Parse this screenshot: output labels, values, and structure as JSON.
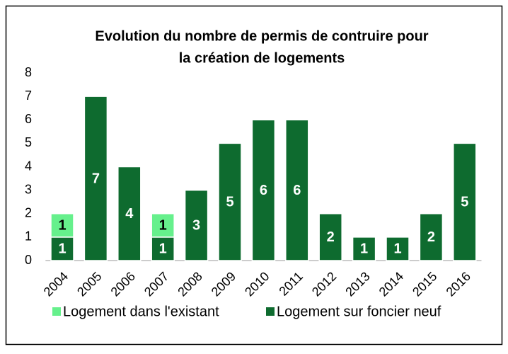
{
  "chart_data": {
    "type": "stacked_bar",
    "title": [
      "Evolution du nombre de permis de contruire pour",
      "la création de logements"
    ],
    "categories": [
      "2004",
      "2005",
      "2006",
      "2007",
      "2008",
      "2009",
      "2010",
      "2011",
      "2012",
      "2013",
      "2014",
      "2015",
      "2016"
    ],
    "series": [
      {
        "name": "Logement dans l'existant",
        "color": "#66f08c",
        "label_color": "#000000",
        "values": [
          1,
          0,
          0,
          1,
          0,
          0,
          0,
          0,
          0,
          0,
          0,
          0,
          0
        ]
      },
      {
        "name": "Logement sur foncier neuf",
        "color": "#0e6b2f",
        "label_color": "#ffffff",
        "values": [
          1,
          7,
          4,
          1,
          3,
          5,
          6,
          6,
          2,
          1,
          1,
          2,
          5
        ]
      }
    ],
    "ylim": [
      0,
      8
    ],
    "yticks": [
      0,
      1,
      2,
      3,
      4,
      5,
      6,
      7,
      8
    ],
    "grid": false,
    "legend": "bottom"
  }
}
